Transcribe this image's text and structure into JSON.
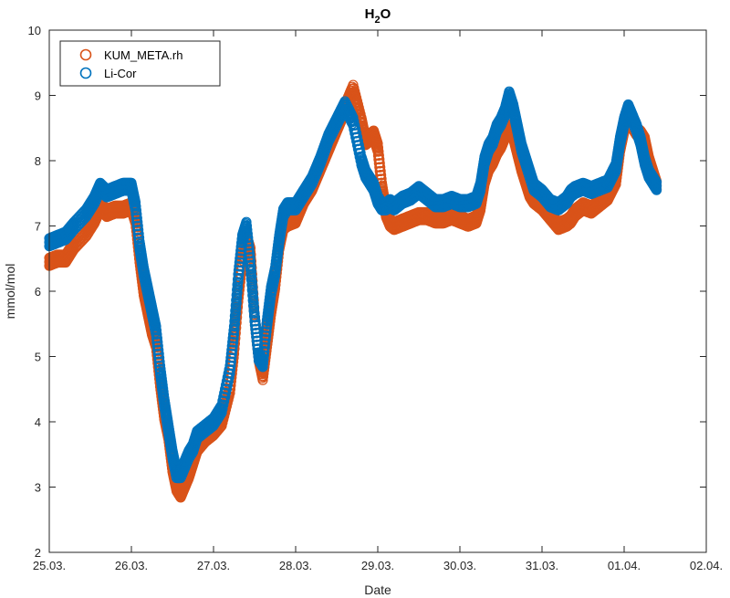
{
  "chart_data": {
    "type": "scatter",
    "title": "H",
    "title_subscript": "2",
    "title_suffix": "O",
    "xlabel": "Date",
    "ylabel": "mmol/mol",
    "xlim": [
      0,
      8
    ],
    "ylim": [
      2,
      10
    ],
    "x_ticks": [
      0,
      1,
      2,
      3,
      4,
      5,
      6,
      7,
      8
    ],
    "x_tick_labels": [
      "25.03.",
      "26.03.",
      "27.03.",
      "28.03.",
      "29.03.",
      "30.03.",
      "31.03.",
      "01.04.",
      "02.04."
    ],
    "y_ticks": [
      2,
      3,
      4,
      5,
      6,
      7,
      8,
      9,
      10
    ],
    "y_tick_labels": [
      "2",
      "3",
      "4",
      "5",
      "6",
      "7",
      "8",
      "9",
      "10"
    ],
    "grid": false,
    "legend_position": "top-left",
    "series": [
      {
        "name": "KUM_META.rh",
        "color": "#D95319",
        "x": [
          0.0,
          0.1,
          0.2,
          0.3,
          0.45,
          0.55,
          0.62,
          0.7,
          0.8,
          0.9,
          1.0,
          1.05,
          1.1,
          1.15,
          1.2,
          1.25,
          1.3,
          1.35,
          1.4,
          1.45,
          1.5,
          1.55,
          1.6,
          1.65,
          1.7,
          1.75,
          1.8,
          1.9,
          2.0,
          2.1,
          2.2,
          2.25,
          2.3,
          2.35,
          2.4,
          2.45,
          2.5,
          2.55,
          2.6,
          2.65,
          2.7,
          2.75,
          2.8,
          2.85,
          2.9,
          3.0,
          3.1,
          3.2,
          3.3,
          3.4,
          3.5,
          3.6,
          3.7,
          3.8,
          3.85,
          3.9,
          3.95,
          4.0,
          4.05,
          4.1,
          4.15,
          4.2,
          4.3,
          4.4,
          4.5,
          4.6,
          4.7,
          4.8,
          4.9,
          5.0,
          5.1,
          5.2,
          5.25,
          5.3,
          5.35,
          5.4,
          5.45,
          5.5,
          5.55,
          5.6,
          5.65,
          5.7,
          5.75,
          5.8,
          5.85,
          5.9,
          6.0,
          6.1,
          6.2,
          6.3,
          6.35,
          6.4,
          6.5,
          6.6,
          6.7,
          6.8,
          6.9,
          6.95,
          7.0,
          7.05,
          7.1,
          7.15,
          7.2,
          7.25,
          7.3,
          7.35,
          7.4
        ],
        "y": [
          6.45,
          6.5,
          6.5,
          6.7,
          6.9,
          7.1,
          7.3,
          7.2,
          7.25,
          7.25,
          7.3,
          7.1,
          6.5,
          6.0,
          5.7,
          5.4,
          5.2,
          4.6,
          4.1,
          3.8,
          3.3,
          3.0,
          2.9,
          3.05,
          3.2,
          3.4,
          3.6,
          3.75,
          3.85,
          4.0,
          4.5,
          5.1,
          5.9,
          6.5,
          6.8,
          6.6,
          5.6,
          5.0,
          4.7,
          5.2,
          5.7,
          6.1,
          6.7,
          7.0,
          7.05,
          7.1,
          7.4,
          7.6,
          7.9,
          8.2,
          8.5,
          8.8,
          9.1,
          8.6,
          8.3,
          8.35,
          8.4,
          8.2,
          7.6,
          7.2,
          7.05,
          7.0,
          7.05,
          7.1,
          7.15,
          7.15,
          7.1,
          7.1,
          7.15,
          7.1,
          7.05,
          7.1,
          7.3,
          7.7,
          7.9,
          8.0,
          8.15,
          8.25,
          8.4,
          8.5,
          8.4,
          8.15,
          7.9,
          7.7,
          7.5,
          7.4,
          7.3,
          7.15,
          7.0,
          7.05,
          7.1,
          7.2,
          7.3,
          7.25,
          7.35,
          7.45,
          7.7,
          8.2,
          8.5,
          8.7,
          8.55,
          8.45,
          8.4,
          8.3,
          8.0,
          7.8,
          7.6
        ]
      },
      {
        "name": "Li-Cor",
        "color": "#0072BD",
        "x": [
          0.0,
          0.1,
          0.2,
          0.3,
          0.45,
          0.55,
          0.62,
          0.7,
          0.8,
          0.9,
          1.0,
          1.05,
          1.1,
          1.15,
          1.2,
          1.25,
          1.3,
          1.35,
          1.4,
          1.45,
          1.5,
          1.55,
          1.6,
          1.65,
          1.7,
          1.75,
          1.8,
          1.9,
          2.0,
          2.1,
          2.2,
          2.25,
          2.3,
          2.35,
          2.4,
          2.45,
          2.5,
          2.55,
          2.6,
          2.65,
          2.7,
          2.75,
          2.8,
          2.85,
          2.9,
          3.0,
          3.1,
          3.2,
          3.3,
          3.4,
          3.5,
          3.6,
          3.7,
          3.8,
          3.85,
          3.9,
          3.95,
          4.0,
          4.05,
          4.1,
          4.15,
          4.2,
          4.3,
          4.4,
          4.5,
          4.6,
          4.7,
          4.8,
          4.9,
          5.0,
          5.1,
          5.2,
          5.25,
          5.3,
          5.35,
          5.4,
          5.45,
          5.5,
          5.55,
          5.6,
          5.65,
          5.7,
          5.75,
          5.8,
          5.85,
          5.9,
          6.0,
          6.1,
          6.2,
          6.3,
          6.35,
          6.4,
          6.5,
          6.6,
          6.7,
          6.8,
          6.9,
          6.95,
          7.0,
          7.05,
          7.1,
          7.15,
          7.2,
          7.25,
          7.3,
          7.35,
          7.4
        ],
        "y": [
          6.75,
          6.8,
          6.85,
          7.0,
          7.2,
          7.4,
          7.6,
          7.5,
          7.55,
          7.6,
          7.6,
          7.3,
          6.7,
          6.3,
          6.0,
          5.7,
          5.4,
          4.8,
          4.3,
          3.9,
          3.5,
          3.2,
          3.2,
          3.35,
          3.5,
          3.6,
          3.8,
          3.9,
          4.0,
          4.2,
          4.8,
          5.4,
          6.2,
          6.8,
          7.0,
          6.4,
          5.6,
          5.0,
          4.9,
          5.5,
          6.0,
          6.3,
          6.8,
          7.2,
          7.3,
          7.3,
          7.5,
          7.7,
          8.0,
          8.35,
          8.6,
          8.85,
          8.6,
          8.0,
          7.8,
          7.7,
          7.6,
          7.4,
          7.3,
          7.3,
          7.35,
          7.3,
          7.4,
          7.45,
          7.55,
          7.45,
          7.35,
          7.35,
          7.4,
          7.35,
          7.35,
          7.4,
          7.6,
          8.0,
          8.2,
          8.3,
          8.5,
          8.6,
          8.75,
          9.0,
          8.8,
          8.5,
          8.2,
          8.0,
          7.8,
          7.6,
          7.5,
          7.35,
          7.3,
          7.4,
          7.5,
          7.55,
          7.6,
          7.55,
          7.6,
          7.65,
          7.9,
          8.3,
          8.6,
          8.8,
          8.65,
          8.5,
          8.3,
          8.0,
          7.8,
          7.7,
          7.6
        ]
      }
    ]
  }
}
